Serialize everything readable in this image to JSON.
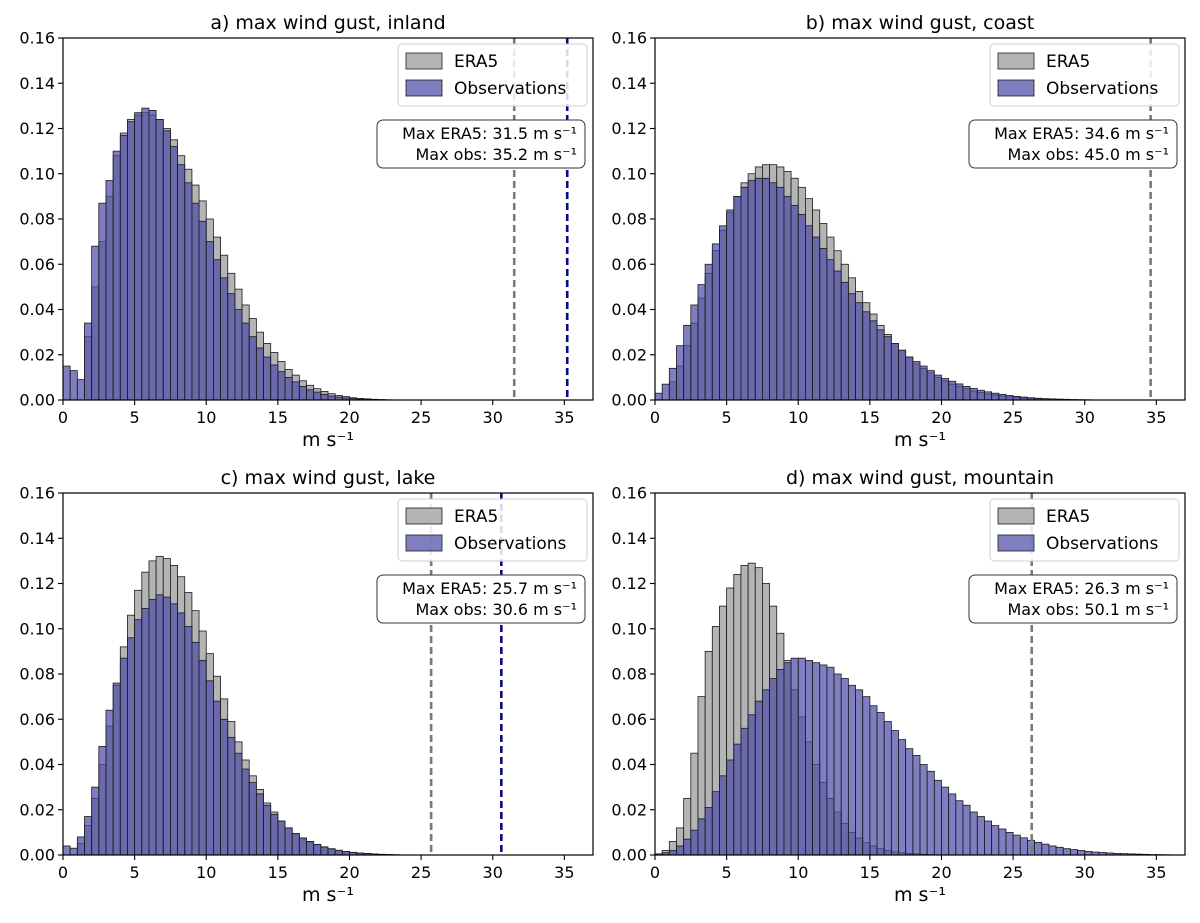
{
  "colors": {
    "era5_fill": "#b4b4b4",
    "obs_fill": "#4c4ca8",
    "edge": "#1c1c1c",
    "era5_line": "#7a7a7a",
    "obs_line": "#0a0a80"
  },
  "legend": {
    "era5_label": "ERA5",
    "obs_label": "Observations"
  },
  "x_unit_label": "m s⁻¹",
  "chart_data": [
    {
      "type": "bar",
      "title": "a) max wind gust, inland",
      "xlabel": "m s⁻¹",
      "ylabel": "",
      "xlim": [
        0,
        37
      ],
      "ylim": [
        0,
        0.16
      ],
      "xticks": [
        0,
        5,
        10,
        15,
        20,
        25,
        30,
        35
      ],
      "yticks": [
        0.0,
        0.02,
        0.04,
        0.06,
        0.08,
        0.1,
        0.12,
        0.14,
        0.16
      ],
      "bin_width": 0.5,
      "stats": [
        "Max ERA5: 31.5 m s⁻¹",
        "Max obs: 35.2 m s⁻¹"
      ],
      "vlines": [
        {
          "series": "ERA5",
          "x": 31.5
        },
        {
          "series": "Observations",
          "x": 35.2
        }
      ],
      "series": [
        {
          "name": "ERA5",
          "x_start": 1.5,
          "values": [
            0.028,
            0.05,
            0.07,
            0.09,
            0.108,
            0.118,
            0.124,
            0.126,
            0.127,
            0.126,
            0.124,
            0.12,
            0.115,
            0.108,
            0.102,
            0.095,
            0.088,
            0.08,
            0.072,
            0.064,
            0.056,
            0.049,
            0.042,
            0.036,
            0.03,
            0.025,
            0.021,
            0.017,
            0.0135,
            0.011,
            0.0085,
            0.0065,
            0.005,
            0.0038,
            0.0028,
            0.002,
            0.0015,
            0.001,
            0.0007,
            0.0005,
            0.0003,
            0.0002,
            0.0001
          ]
        },
        {
          "name": "Observations",
          "x_start": 0,
          "values": [
            0.015,
            0.013,
            0.009,
            0.034,
            0.068,
            0.087,
            0.097,
            0.11,
            0.117,
            0.123,
            0.127,
            0.129,
            0.128,
            0.124,
            0.119,
            0.112,
            0.104,
            0.096,
            0.087,
            0.079,
            0.07,
            0.062,
            0.054,
            0.047,
            0.04,
            0.034,
            0.028,
            0.023,
            0.019,
            0.0155,
            0.0125,
            0.01,
            0.008,
            0.006,
            0.0045,
            0.0035,
            0.0025,
            0.0018,
            0.0013,
            0.0009,
            0.0006,
            0.0004,
            0.0003,
            0.0002,
            0.0001
          ]
        }
      ]
    },
    {
      "type": "bar",
      "title": "b) max wind gust, coast",
      "xlabel": "m s⁻¹",
      "ylabel": "",
      "xlim": [
        0,
        37
      ],
      "ylim": [
        0,
        0.16
      ],
      "xticks": [
        0,
        5,
        10,
        15,
        20,
        25,
        30,
        35
      ],
      "yticks": [
        0.0,
        0.02,
        0.04,
        0.06,
        0.08,
        0.1,
        0.12,
        0.14,
        0.16
      ],
      "bin_width": 0.5,
      "stats": [
        "Max ERA5: 34.6 m s⁻¹",
        "Max obs: 45.0 m s⁻¹"
      ],
      "vlines": [
        {
          "series": "ERA5",
          "x": 34.6
        }
      ],
      "series": [
        {
          "name": "ERA5",
          "x_start": 1.0,
          "values": [
            0.008,
            0.015,
            0.024,
            0.034,
            0.045,
            0.056,
            0.066,
            0.075,
            0.083,
            0.09,
            0.096,
            0.1,
            0.103,
            0.104,
            0.104,
            0.103,
            0.101,
            0.098,
            0.094,
            0.089,
            0.084,
            0.078,
            0.072,
            0.066,
            0.06,
            0.054,
            0.048,
            0.043,
            0.038,
            0.033,
            0.029,
            0.025,
            0.022,
            0.019,
            0.016,
            0.014,
            0.012,
            0.01,
            0.0085,
            0.007,
            0.006,
            0.005,
            0.004,
            0.0033,
            0.0027,
            0.0022,
            0.0018,
            0.0014,
            0.0011,
            0.0009,
            0.0007,
            0.0005,
            0.0004,
            0.0003,
            0.0002,
            0.00015,
            0.0001
          ]
        },
        {
          "name": "Observations",
          "x_start": 0,
          "values": [
            0.003,
            0.007,
            0.014,
            0.024,
            0.033,
            0.042,
            0.051,
            0.06,
            0.069,
            0.077,
            0.084,
            0.09,
            0.094,
            0.097,
            0.098,
            0.098,
            0.096,
            0.094,
            0.09,
            0.086,
            0.082,
            0.077,
            0.072,
            0.067,
            0.062,
            0.057,
            0.052,
            0.047,
            0.043,
            0.039,
            0.035,
            0.031,
            0.028,
            0.025,
            0.022,
            0.019,
            0.017,
            0.015,
            0.013,
            0.011,
            0.0095,
            0.0083,
            0.0071,
            0.006,
            0.0051,
            0.0043,
            0.0036,
            0.003,
            0.0025,
            0.002,
            0.0016,
            0.0013,
            0.001,
            0.0008,
            0.0006,
            0.0005,
            0.0004,
            0.0003,
            0.0002,
            0.00015,
            0.0001
          ]
        }
      ]
    },
    {
      "type": "bar",
      "title": "c) max wind gust, lake",
      "xlabel": "m s⁻¹",
      "ylabel": "",
      "xlim": [
        0,
        37
      ],
      "ylim": [
        0,
        0.16
      ],
      "xticks": [
        0,
        5,
        10,
        15,
        20,
        25,
        30,
        35
      ],
      "yticks": [
        0.0,
        0.02,
        0.04,
        0.06,
        0.08,
        0.1,
        0.12,
        0.14,
        0.16
      ],
      "bin_width": 0.5,
      "stats": [
        "Max ERA5: 25.7 m s⁻¹",
        "Max obs: 30.6 m s⁻¹"
      ],
      "vlines": [
        {
          "series": "ERA5",
          "x": 25.7
        },
        {
          "series": "Observations",
          "x": 30.6
        }
      ],
      "series": [
        {
          "name": "ERA5",
          "x_start": 1.0,
          "values": [
            0.005,
            0.013,
            0.025,
            0.04,
            0.057,
            0.075,
            0.092,
            0.106,
            0.117,
            0.125,
            0.13,
            0.132,
            0.131,
            0.128,
            0.123,
            0.116,
            0.108,
            0.099,
            0.089,
            0.079,
            0.069,
            0.059,
            0.05,
            0.042,
            0.035,
            0.029,
            0.023,
            0.019,
            0.015,
            0.012,
            0.0095,
            0.0075,
            0.0058,
            0.0045,
            0.0034,
            0.0026,
            0.002,
            0.0015,
            0.0011,
            0.0008,
            0.0006,
            0.0004,
            0.0003,
            0.0002,
            0.0001
          ]
        },
        {
          "name": "Observations",
          "x_start": 0,
          "values": [
            0.004,
            0.003,
            0.008,
            0.017,
            0.03,
            0.048,
            0.064,
            0.076,
            0.087,
            0.096,
            0.104,
            0.109,
            0.113,
            0.115,
            0.114,
            0.111,
            0.107,
            0.101,
            0.094,
            0.086,
            0.077,
            0.068,
            0.06,
            0.052,
            0.045,
            0.038,
            0.032,
            0.027,
            0.022,
            0.018,
            0.015,
            0.012,
            0.0095,
            0.0075,
            0.006,
            0.0047,
            0.0036,
            0.0028,
            0.0021,
            0.0016,
            0.0012,
            0.0009,
            0.0007,
            0.0005,
            0.0003,
            0.0002,
            0.0001
          ]
        }
      ]
    },
    {
      "type": "bar",
      "title": "d) max wind gust, mountain",
      "xlabel": "m s⁻¹",
      "ylabel": "",
      "xlim": [
        0,
        37
      ],
      "ylim": [
        0,
        0.16
      ],
      "xticks": [
        0,
        5,
        10,
        15,
        20,
        25,
        30,
        35
      ],
      "yticks": [
        0.0,
        0.02,
        0.04,
        0.06,
        0.08,
        0.1,
        0.12,
        0.14,
        0.16
      ],
      "bin_width": 0.5,
      "stats": [
        "Max ERA5: 26.3 m s⁻¹",
        "Max obs: 50.1 m s⁻¹"
      ],
      "vlines": [
        {
          "series": "ERA5",
          "x": 26.3
        }
      ],
      "series": [
        {
          "name": "ERA5",
          "x_start": 0.5,
          "values": [
            0.002,
            0.006,
            0.012,
            0.025,
            0.045,
            0.07,
            0.09,
            0.101,
            0.11,
            0.118,
            0.124,
            0.128,
            0.129,
            0.127,
            0.12,
            0.11,
            0.098,
            0.086,
            0.073,
            0.061,
            0.05,
            0.04,
            0.032,
            0.025,
            0.019,
            0.014,
            0.01,
            0.0075,
            0.0055,
            0.004,
            0.0028,
            0.002,
            0.0014,
            0.001,
            0.0007,
            0.0005,
            0.0003,
            0.0002,
            0.0001
          ]
        },
        {
          "name": "Observations",
          "x_start": 0,
          "values": [
            0.0005,
            0.001,
            0.002,
            0.004,
            0.007,
            0.011,
            0.016,
            0.021,
            0.028,
            0.035,
            0.042,
            0.049,
            0.056,
            0.062,
            0.068,
            0.073,
            0.078,
            0.082,
            0.085,
            0.087,
            0.087,
            0.086,
            0.085,
            0.084,
            0.083,
            0.08,
            0.078,
            0.075,
            0.073,
            0.07,
            0.066,
            0.063,
            0.059,
            0.055,
            0.051,
            0.047,
            0.044,
            0.04,
            0.037,
            0.033,
            0.03,
            0.027,
            0.024,
            0.022,
            0.019,
            0.017,
            0.015,
            0.013,
            0.0115,
            0.01,
            0.0088,
            0.0076,
            0.0065,
            0.0056,
            0.0048,
            0.004,
            0.0034,
            0.0028,
            0.0024,
            0.002,
            0.0016,
            0.0013,
            0.0011,
            0.0009,
            0.0007,
            0.0006,
            0.0005,
            0.0004,
            0.0003,
            0.0002,
            0.00015,
            0.0001
          ]
        }
      ]
    }
  ]
}
